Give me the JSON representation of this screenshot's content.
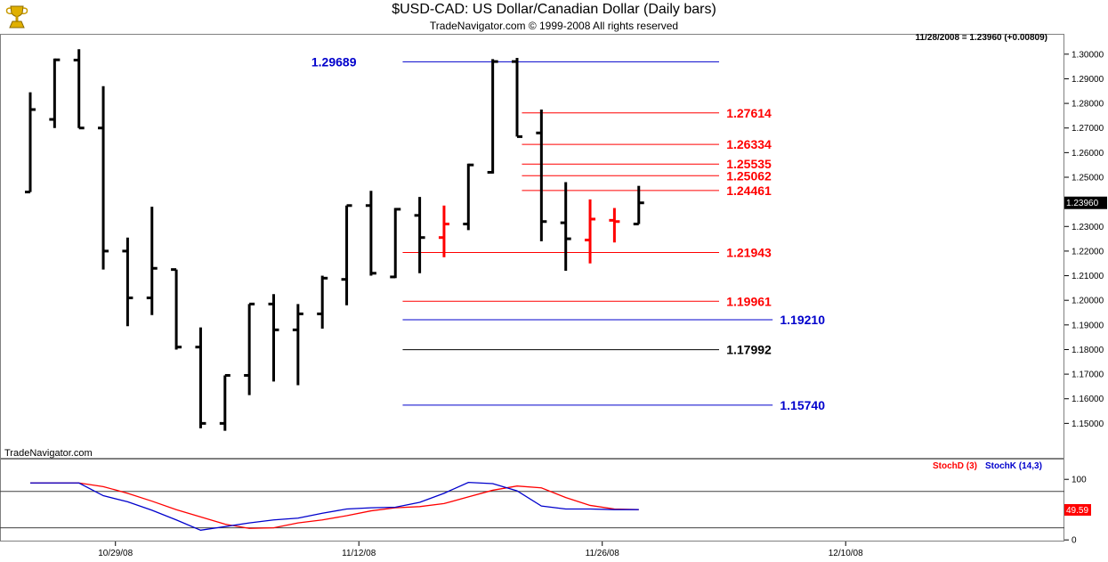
{
  "header": {
    "title": "$USD-CAD:  US Dollar/Canadian Dollar  (Daily bars)",
    "subtitle": "TradeNavigator.com © 1999-2008 All rights reserved"
  },
  "chart_data": [
    {
      "type": "ohlc",
      "readout": "11/28/2008 = 1.23960 (+0.00809)",
      "watermark": "TradeNavigator.com",
      "last_price_label": "1.23960",
      "ylim": [
        1.14,
        1.305
      ],
      "y_ticks": [
        "1.30000",
        "1.29000",
        "1.28000",
        "1.27000",
        "1.26000",
        "1.25000",
        "1.24000",
        "1.23000",
        "1.22000",
        "1.21000",
        "1.20000",
        "1.19000",
        "1.18000",
        "1.17000",
        "1.16000",
        "1.15000"
      ],
      "x_labels": [
        {
          "label": "10/29/08",
          "bar": 3.5
        },
        {
          "label": "11/12/08",
          "bar": 13.5
        },
        {
          "label": "11/26/08",
          "bar": 23.5
        },
        {
          "label": "12/10/08",
          "bar": 33.5
        }
      ],
      "bars": [
        {
          "o": 1.244,
          "h": 1.2845,
          "l": 1.244,
          "c": 1.2775,
          "color": "#000000"
        },
        {
          "o": 1.2735,
          "h": 1.2982,
          "l": 1.27,
          "c": 1.2977,
          "color": "#000000"
        },
        {
          "o": 1.2976,
          "h": 1.302,
          "l": 1.27,
          "c": 1.27,
          "color": "#000000"
        },
        {
          "o": 1.27,
          "h": 1.287,
          "l": 1.2125,
          "c": 1.22,
          "color": "#000000"
        },
        {
          "o": 1.22,
          "h": 1.2255,
          "l": 1.1895,
          "c": 1.201,
          "color": "#000000"
        },
        {
          "o": 1.201,
          "h": 1.238,
          "l": 1.194,
          "c": 1.213,
          "color": "#000000"
        },
        {
          "o": 1.2125,
          "h": 1.2125,
          "l": 1.18,
          "c": 1.181,
          "color": "#000000"
        },
        {
          "o": 1.181,
          "h": 1.189,
          "l": 1.148,
          "c": 1.15,
          "color": "#000000"
        },
        {
          "o": 1.15,
          "h": 1.1695,
          "l": 1.147,
          "c": 1.1695,
          "color": "#000000"
        },
        {
          "o": 1.1695,
          "h": 1.1985,
          "l": 1.1615,
          "c": 1.1985,
          "color": "#000000"
        },
        {
          "o": 1.1985,
          "h": 1.2025,
          "l": 1.167,
          "c": 1.188,
          "color": "#000000"
        },
        {
          "o": 1.188,
          "h": 1.1985,
          "l": 1.1655,
          "c": 1.1945,
          "color": "#000000"
        },
        {
          "o": 1.1945,
          "h": 1.21,
          "l": 1.1885,
          "c": 1.209,
          "color": "#000000"
        },
        {
          "o": 1.2085,
          "h": 1.2385,
          "l": 1.198,
          "c": 1.2385,
          "color": "#000000"
        },
        {
          "o": 1.2385,
          "h": 1.2445,
          "l": 1.21,
          "c": 1.211,
          "color": "#000000"
        },
        {
          "o": 1.2095,
          "h": 1.2375,
          "l": 1.209,
          "c": 1.237,
          "color": "#000000"
        },
        {
          "o": 1.2345,
          "h": 1.242,
          "l": 1.211,
          "c": 1.2255,
          "color": "#000000"
        },
        {
          "o": 1.2255,
          "h": 1.2385,
          "l": 1.2175,
          "c": 1.231,
          "color": "#ff0000"
        },
        {
          "o": 1.231,
          "h": 1.2555,
          "l": 1.2285,
          "c": 1.255,
          "color": "#000000"
        },
        {
          "o": 1.252,
          "h": 1.298,
          "l": 1.2515,
          "c": 1.297,
          "color": "#000000"
        },
        {
          "o": 1.297,
          "h": 1.2985,
          "l": 1.2665,
          "c": 1.2665,
          "color": "#000000"
        },
        {
          "o": 1.268,
          "h": 1.2775,
          "l": 1.224,
          "c": 1.232,
          "color": "#000000"
        },
        {
          "o": 1.2315,
          "h": 1.248,
          "l": 1.212,
          "c": 1.225,
          "color": "#000000"
        },
        {
          "o": 1.2245,
          "h": 1.241,
          "l": 1.215,
          "c": 1.233,
          "color": "#ff0000"
        },
        {
          "o": 1.2325,
          "h": 1.2375,
          "l": 1.2235,
          "c": 1.232,
          "color": "#ff0000"
        },
        {
          "o": 1.231,
          "h": 1.2465,
          "l": 1.231,
          "c": 1.2396,
          "color": "#000000"
        }
      ],
      "levels": [
        {
          "value": 1.29689,
          "label": "1.29689",
          "color": "#0000cc",
          "x1": 15.3,
          "x2": 28.3,
          "label_side": "left",
          "label_x": 13.4
        },
        {
          "value": 1.27614,
          "label": "1.27614",
          "color": "#ff0000",
          "x1": 20.2,
          "x2": 28.3,
          "label_side": "right",
          "label_x": 28.6
        },
        {
          "value": 1.26334,
          "label": "1.26334",
          "color": "#ff0000",
          "x1": 20.2,
          "x2": 28.3,
          "label_side": "right",
          "label_x": 28.6
        },
        {
          "value": 1.25535,
          "label": "1.25535",
          "color": "#ff0000",
          "x1": 20.2,
          "x2": 28.3,
          "label_side": "right",
          "label_x": 28.6
        },
        {
          "value": 1.25062,
          "label": "1.25062",
          "color": "#ff0000",
          "x1": 20.2,
          "x2": 28.3,
          "label_side": "right",
          "label_x": 28.6
        },
        {
          "value": 1.24461,
          "label": "1.24461",
          "color": "#ff0000",
          "x1": 20.2,
          "x2": 28.3,
          "label_side": "right",
          "label_x": 28.6
        },
        {
          "value": 1.21943,
          "label": "1.21943",
          "color": "#ff0000",
          "x1": 15.3,
          "x2": 28.3,
          "label_side": "right",
          "label_x": 28.6
        },
        {
          "value": 1.19961,
          "label": "1.19961",
          "color": "#ff0000",
          "x1": 15.3,
          "x2": 28.3,
          "label_side": "right",
          "label_x": 28.6
        },
        {
          "value": 1.1921,
          "label": "1.19210",
          "color": "#0000cc",
          "x1": 15.3,
          "x2": 30.5,
          "label_side": "right",
          "label_x": 30.8
        },
        {
          "value": 1.17992,
          "label": "1.17992",
          "color": "#000000",
          "x1": 15.3,
          "x2": 28.3,
          "label_side": "right",
          "label_x": 28.6
        },
        {
          "value": 1.1574,
          "label": "1.15740",
          "color": "#0000cc",
          "x1": 15.3,
          "x2": 30.5,
          "label_side": "right",
          "label_x": 30.8
        }
      ]
    },
    {
      "type": "line",
      "ylim": [
        -10,
        115
      ],
      "y_ticks": [
        "100",
        "50",
        "0"
      ],
      "reference_lines": [
        80,
        20
      ],
      "last_value_label": "49.59",
      "series": [
        {
          "name": "StochD (3)",
          "color": "#ff0000",
          "values": [
            94,
            94,
            94,
            88,
            77,
            64,
            50,
            38,
            26,
            19,
            20,
            28,
            33,
            40,
            48,
            53,
            55,
            60,
            71,
            82,
            89,
            86,
            70,
            57,
            51,
            50
          ]
        },
        {
          "name": "StochK (14,3)",
          "color": "#0000cc",
          "values": [
            94,
            94,
            94,
            73,
            63,
            49,
            33,
            16,
            22,
            28,
            33,
            36,
            44,
            51,
            53,
            54,
            62,
            77,
            95,
            93,
            81,
            56,
            51,
            51,
            50,
            50
          ]
        }
      ]
    }
  ]
}
